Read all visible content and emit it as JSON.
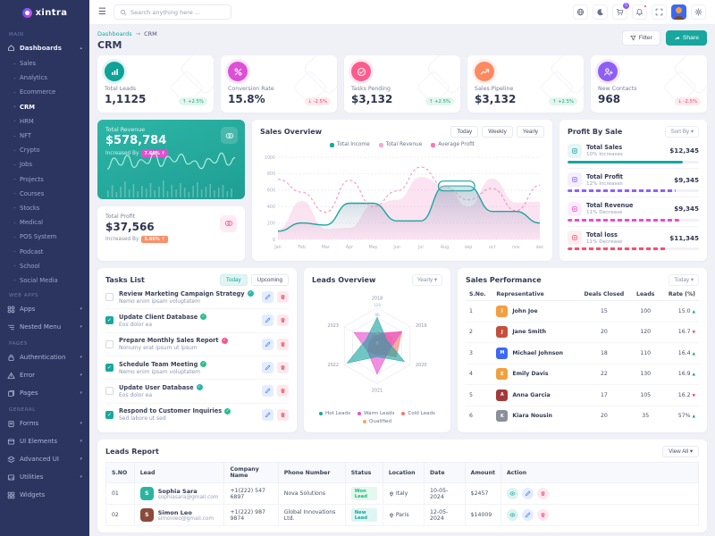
{
  "brand": {
    "name": "xintra"
  },
  "navbar": {
    "search_placeholder": "Search anything here ...",
    "cart_badge": "5",
    "icons": [
      "language",
      "dark-mode",
      "cart",
      "notifications",
      "fullscreen",
      "profile",
      "settings"
    ]
  },
  "sidebar": {
    "sections": [
      {
        "label": "MAIN",
        "type": "tree",
        "parent": {
          "label": "Dashboards",
          "icon": "home"
        },
        "children": [
          "Sales",
          "Analytics",
          "Ecommerce",
          "CRM",
          "HRM",
          "NFT",
          "Crypto",
          "Jobs",
          "Projects",
          "Courses",
          "Stocks",
          "Medical",
          "POS System",
          "Podcast",
          "School",
          "Social Media"
        ],
        "active_child": "CRM"
      },
      {
        "label": "WEB APPS",
        "type": "flat",
        "items": [
          {
            "label": "Apps",
            "icon": "grid",
            "chevron": true
          },
          {
            "label": "Nested Menu",
            "icon": "nested",
            "chevron": true
          }
        ]
      },
      {
        "label": "PAGES",
        "type": "flat",
        "items": [
          {
            "label": "Authentication",
            "icon": "lock",
            "chevron": true
          },
          {
            "label": "Error",
            "icon": "warning",
            "chevron": true
          },
          {
            "label": "Pages",
            "icon": "pages",
            "chevron": true
          }
        ]
      },
      {
        "label": "GENERAL",
        "type": "flat",
        "items": [
          {
            "label": "Forms",
            "icon": "form",
            "chevron": true
          },
          {
            "label": "UI Elements",
            "icon": "ui",
            "chevron": true
          },
          {
            "label": "Advanced UI",
            "icon": "advanced",
            "chevron": true
          },
          {
            "label": "Utilities",
            "icon": "utilities",
            "chevron": true
          },
          {
            "label": "Widgets",
            "icon": "widgets",
            "chevron": false
          }
        ]
      }
    ]
  },
  "header": {
    "breadcrumb": [
      "Dashboards",
      "CRM"
    ],
    "breadcrumb_sep": "→",
    "title": "CRM",
    "filter_label": "Filter",
    "share_label": "Share"
  },
  "kpis": [
    {
      "label": "Total Leads",
      "value": "1,1125",
      "change": "+2.5%",
      "direction": "up",
      "color": "#0fa298",
      "icon": "bars"
    },
    {
      "label": "Conversion Rate",
      "value": "15.8%",
      "change": "-2.5%",
      "direction": "down",
      "color": "#dd4fd7",
      "icon": "percent"
    },
    {
      "label": "Tasks Pending",
      "value": "$3,132",
      "change": "+2.5%",
      "direction": "up",
      "color": "#fb5c8f",
      "icon": "check-circle"
    },
    {
      "label": "Sales Pipeline",
      "value": "$3,132",
      "change": "+2.5%",
      "direction": "up",
      "color": "#fb8a63",
      "icon": "chart-line"
    },
    {
      "label": "New Contacts",
      "value": "968",
      "change": "-2.5%",
      "direction": "down",
      "color": "#8f5ef5",
      "icon": "person-plus"
    }
  ],
  "revenue_card": {
    "title": "Total Revenue",
    "value": "$578,784",
    "caption": "Increased By",
    "badge": "7.66% ↑"
  },
  "profit_card": {
    "title": "Total Profit",
    "value": "$37,566",
    "caption": "Increased By",
    "badge": "5.66% ↑"
  },
  "sales_overview": {
    "title": "Sales Overview",
    "filters": [
      "Today",
      "Weekly",
      "Yearly"
    ]
  },
  "profit_by_sale": {
    "title": "Profit By Sale",
    "sort_label": "Sort By ▾",
    "items": [
      {
        "label": "Total Sales",
        "sub": "10% Increases",
        "value": "$12,345",
        "color": "#17a79f",
        "bar": 88,
        "dashed": false
      },
      {
        "label": "Total Profit",
        "sub": "12% Increases",
        "value": "$9,345",
        "color": "#8d60f5",
        "bar": 82,
        "dashed": true
      },
      {
        "label": "Total Revenue",
        "sub": "11% Decrease",
        "value": "$9,345",
        "color": "#ec4bd0",
        "bar": 85,
        "dashed": true
      },
      {
        "label": "Total loss",
        "sub": "11% Decrease",
        "value": "$11,345",
        "color": "#fb4f6d",
        "bar": 75,
        "dashed": true
      }
    ]
  },
  "tasks": {
    "title": "Tasks List",
    "filters": [
      "Today",
      "Upcoming"
    ],
    "active_filter": "Today",
    "items": [
      {
        "title": "Review Marketing Campaign Strategy",
        "sub": "Nemo enim ipsam voluptatem",
        "checked": false,
        "badge_color": "#29b5ac"
      },
      {
        "title": "Update Client Database",
        "sub": "Eos dolor ea",
        "checked": true,
        "badge_color": "#2dbd8b"
      },
      {
        "title": "Prepare Monthly Sales Report",
        "sub": "Nonumy erat ipsum ut ipsum",
        "checked": false,
        "badge_color": "#f75590"
      },
      {
        "title": "Schedule Team Meeting",
        "sub": "Nemo enim ipsam voluptatem",
        "checked": true,
        "badge_color": "#2dbd8b"
      },
      {
        "title": "Update User Database",
        "sub": "Eos dolor ea",
        "checked": false,
        "badge_color": "#29b5ac"
      },
      {
        "title": "Respond to Customer Inquiries",
        "sub": "Sed labore ut sed",
        "checked": true,
        "badge_color": "#2dbd8b"
      }
    ]
  },
  "leads_overview": {
    "title": "Leads Overview",
    "filter": "Yearly ▾"
  },
  "sales_performance": {
    "title": "Sales Performance",
    "filter": "Today ▾",
    "columns": [
      "S.No.",
      "Representative",
      "Deals Closed",
      "Leads",
      "Rate (%)"
    ],
    "rows": [
      {
        "no": "1",
        "name": "John Joe",
        "deals": "15",
        "leads": "100",
        "rate": "15.0",
        "direction": "up",
        "avatar_color": "#f59e42",
        "initial": "J"
      },
      {
        "no": "2",
        "name": "Jane Smith",
        "deals": "20",
        "leads": "120",
        "rate": "16.7",
        "direction": "down",
        "avatar_color": "#c4503c",
        "initial": "J"
      },
      {
        "no": "3",
        "name": "Michael Johnson",
        "deals": "18",
        "leads": "110",
        "rate": "16.4",
        "direction": "up",
        "avatar_color": "#3b68f5",
        "initial": "M"
      },
      {
        "no": "4",
        "name": "Emily Davis",
        "deals": "22",
        "leads": "130",
        "rate": "16.9",
        "direction": "up",
        "avatar_color": "#f0a13c",
        "initial": "E"
      },
      {
        "no": "5",
        "name": "Anna Garcia",
        "deals": "17",
        "leads": "105",
        "rate": "16.2",
        "direction": "down",
        "avatar_color": "#a33a3a",
        "initial": "A"
      },
      {
        "no": "6",
        "name": "Kiara Nousin",
        "deals": "20",
        "leads": "35",
        "rate": "57%",
        "direction": "up",
        "avatar_color": "#8a8f98",
        "initial": "K"
      }
    ]
  },
  "leads_report": {
    "title": "Leads Report",
    "view_all": "View All ▾",
    "columns": [
      "S.NO",
      "Lead",
      "Company Name",
      "Phone Number",
      "Status",
      "Location",
      "Date",
      "Amount",
      "Action"
    ],
    "rows": [
      {
        "no": "01",
        "name": "Sophia Sara",
        "email": "sophiasara@gmail.com",
        "phone": "+1(222) 547 6897",
        "company": "Nova Solutions",
        "status": "Won Lead",
        "status_type": "success",
        "location": "Italy",
        "date": "10-05-2024",
        "amount": "$2457",
        "avatar_color": "#2ab5a0",
        "initial": "S"
      },
      {
        "no": "02",
        "name": "Simon Leo",
        "email": "simonleo@gmail.com",
        "phone": "+1(222) 987 9874",
        "company": "Global Innovations Ltd.",
        "status": "New Lead",
        "status_type": "teal",
        "location": "Paris",
        "date": "12-05-2024",
        "amount": "$14009",
        "avatar_color": "#8a4a3a",
        "initial": "S"
      }
    ]
  },
  "chart_data": [
    {
      "type": "line",
      "title": "Sales Overview",
      "x": [
        "Jan",
        "Feb",
        "Mar",
        "Apr",
        "May",
        "Jun",
        "Jul",
        "Aug",
        "sep",
        "oct",
        "nov",
        "dec"
      ],
      "ylim": [
        0,
        1000
      ],
      "yticks": [
        0,
        200,
        400,
        600,
        800,
        1000
      ],
      "grid": true,
      "legend_position": "top",
      "series": [
        {
          "name": "Total Income",
          "style": "line",
          "color": "#1aa5a0",
          "values": [
            100,
            200,
            175,
            440,
            440,
            225,
            225,
            650,
            650,
            340,
            340,
            200
          ]
        },
        {
          "name": "Total Revenue",
          "style": "area",
          "color": "#f5a8d8",
          "values": [
            120,
            470,
            130,
            140,
            420,
            480,
            760,
            660,
            400,
            740,
            450,
            460
          ]
        },
        {
          "name": "Average Profit",
          "style": "dashed",
          "color": "#f27bb4",
          "values": [
            730,
            575,
            330,
            720,
            400,
            590,
            880,
            640,
            480,
            620,
            350,
            660
          ]
        }
      ]
    },
    {
      "type": "radar",
      "title": "Leads Overview",
      "categories": [
        "2018",
        "2019",
        "2020",
        "2021",
        "2022",
        "2023"
      ],
      "rticks": [
        0,
        30,
        60,
        90,
        120
      ],
      "rlim": [
        0,
        120
      ],
      "legend_position": "bottom",
      "series": [
        {
          "name": "Hot Leads",
          "color": "#1aa5a0",
          "values": [
            90,
            35,
            100,
            35,
            110,
            40
          ]
        },
        {
          "name": "Warm Leads",
          "color": "#ec4bd0",
          "values": [
            40,
            90,
            40,
            90,
            35,
            85
          ]
        },
        {
          "name": "Cold Leads",
          "color": "#f2766b",
          "values": [
            35,
            90,
            70,
            25,
            35,
            25
          ]
        },
        {
          "name": "Qualified",
          "color": "#fba264",
          "values": [
            45,
            55,
            45,
            30,
            35,
            30
          ]
        }
      ]
    },
    {
      "type": "area",
      "title": "Total Revenue sparkline",
      "series": [
        {
          "name": "revenue-trend",
          "color": "#a9ead9",
          "values": [
            35,
            55,
            42,
            60,
            38,
            52,
            45,
            65,
            40,
            58,
            48,
            62,
            44,
            50,
            36,
            54,
            46,
            64,
            42,
            56
          ]
        },
        {
          "name": "revenue-bars",
          "color": "#ffffff",
          "values": [
            8,
            14,
            6,
            12,
            18,
            9,
            15,
            7,
            13,
            10,
            16,
            8,
            12,
            19,
            7,
            14,
            9,
            16,
            11,
            6,
            13,
            17,
            9,
            12,
            15,
            8,
            11,
            14,
            7,
            10
          ]
        }
      ]
    }
  ]
}
